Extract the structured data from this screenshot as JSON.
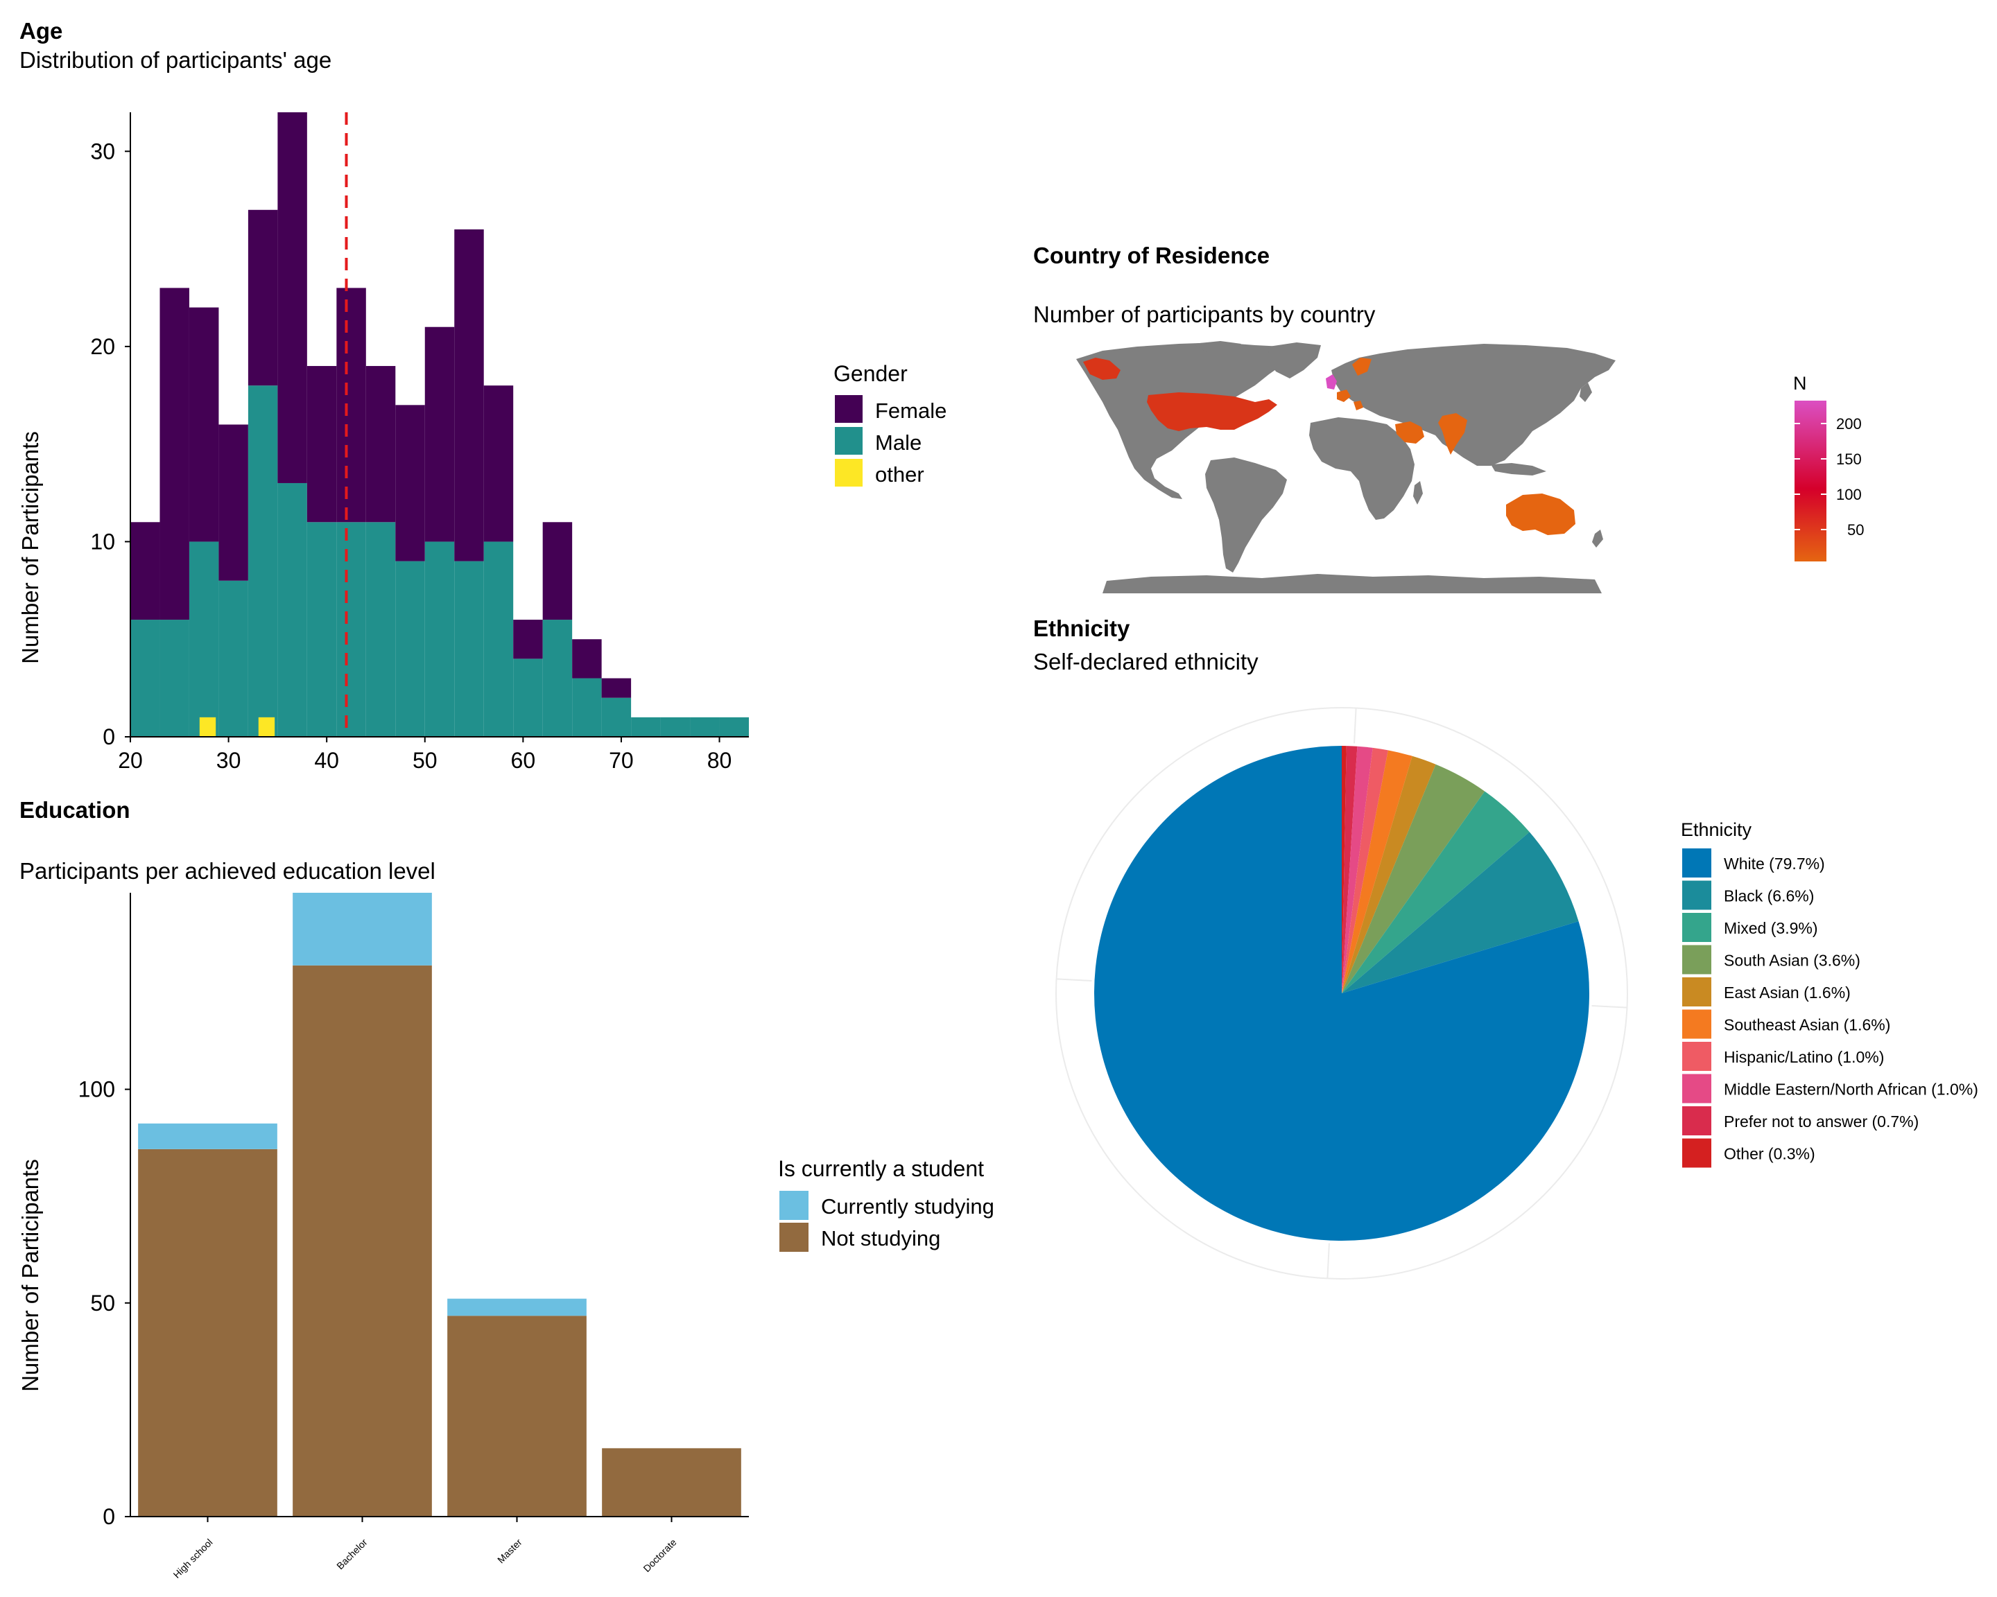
{
  "age": {
    "title": "Age",
    "subtitle": "Distribution of participants' age",
    "ylabel": "Number of Participants",
    "yticks": [
      "0",
      "10",
      "20",
      "30"
    ],
    "xticks": [
      "20",
      "30",
      "40",
      "50",
      "60",
      "70",
      "80"
    ],
    "mean_line_x": 42,
    "chart_data": {
      "type": "bar",
      "stacked": true,
      "title": "Age",
      "subtitle": "Distribution of participants' age",
      "xlabel": "",
      "ylabel": "Number of Participants",
      "xlim": [
        20,
        83
      ],
      "ylim": [
        0,
        32
      ],
      "bin_starts": [
        20,
        23,
        26,
        29,
        32,
        35,
        38,
        41,
        44,
        47,
        50,
        53,
        56,
        59,
        62,
        65,
        68,
        71,
        74,
        77,
        80
      ],
      "bin_width": 3,
      "series": [
        {
          "name": "Female",
          "values": [
            5,
            17,
            12,
            8,
            9,
            19,
            8,
            12,
            8,
            8,
            11,
            17,
            8,
            2,
            5,
            2,
            1,
            0,
            0,
            0,
            0
          ]
        },
        {
          "name": "Male",
          "values": [
            6,
            6,
            10,
            8,
            18,
            13,
            11,
            11,
            11,
            9,
            10,
            9,
            10,
            4,
            6,
            3,
            2,
            1,
            1,
            1,
            1
          ]
        },
        {
          "name": "other",
          "values": [
            0,
            0,
            1,
            0,
            1,
            0,
            0,
            0,
            0,
            0,
            0,
            0,
            0,
            0,
            0,
            0,
            0,
            0,
            0,
            0,
            0
          ]
        }
      ]
    },
    "legend": {
      "title": "Gender",
      "items": [
        {
          "label": "Female",
          "color": "#440154"
        },
        {
          "label": "Male",
          "color": "#21908C"
        },
        {
          "label": "other",
          "color": "#FDE725"
        }
      ]
    },
    "mean_line_color": "#E41A1C"
  },
  "country": {
    "title": "Country of Residence",
    "subtitle": "Number of participants by country",
    "legend_title": "N",
    "legend_ticks": [
      "200",
      "150",
      "100",
      "50"
    ],
    "chart_data": {
      "type": "map",
      "title": "Country of Residence",
      "subtitle": "Number of participants by country",
      "scale": {
        "name": "N",
        "min": 1,
        "max": 235,
        "ticks": [
          50,
          100,
          150,
          200
        ]
      },
      "highlighted_regions": [
        {
          "region": "United States",
          "approx_n": 85
        },
        {
          "region": "Canada",
          "approx_n": 70
        },
        {
          "region": "United Kingdom",
          "approx_n": 230
        },
        {
          "region": "Europe (various)",
          "approx_n": 25
        },
        {
          "region": "India",
          "approx_n": 20
        },
        {
          "region": "Saudi Arabia",
          "approx_n": 15
        },
        {
          "region": "Australia",
          "approx_n": 10
        }
      ]
    },
    "colors": {
      "land": "#7F7F7F",
      "low": "#E56511",
      "mid": "#D5002A",
      "high": "#DB4FC2"
    }
  },
  "education": {
    "title": "Education",
    "subtitle": "Participants per achieved education level",
    "ylabel": "Number of Participants",
    "yticks": [
      "0",
      "50",
      "100"
    ],
    "chart_data": {
      "type": "bar",
      "stacked": true,
      "title": "Education",
      "subtitle": "Participants per achieved education level",
      "xlabel": "",
      "ylabel": "Number of Participants",
      "ylim": [
        0,
        146
      ],
      "categories": [
        "High school",
        "Bachelor",
        "Master",
        "Doctorate"
      ],
      "series": [
        {
          "name": "Not studying",
          "values": [
            86,
            129,
            47,
            16
          ]
        },
        {
          "name": "Currently studying",
          "values": [
            6,
            17,
            4,
            0
          ]
        }
      ]
    },
    "legend": {
      "title": "Is currently a student",
      "items": [
        {
          "label": "Currently studying",
          "color": "#6BBFE1"
        },
        {
          "label": "Not studying",
          "color": "#926A3F"
        }
      ]
    }
  },
  "ethnicity": {
    "title": "Ethnicity",
    "subtitle": "Self-declared ethnicity",
    "chart_data": {
      "type": "pie",
      "title": "Ethnicity",
      "subtitle": "Self-declared ethnicity",
      "categories": [
        "White (79.7%)",
        "Black (6.6%)",
        "Mixed (3.9%)",
        "South Asian (3.6%)",
        "East Asian (1.6%)",
        "Southeast Asian (1.6%)",
        "Hispanic/Latino (1.0%)",
        "Middle Eastern/North African (1.0%)",
        "Prefer not to answer (0.7%)",
        "Other (0.3%)"
      ],
      "values": [
        79.7,
        6.6,
        3.9,
        3.6,
        1.6,
        1.6,
        1.0,
        1.0,
        0.7,
        0.3
      ]
    },
    "legend": {
      "title": "Ethnicity",
      "items": [
        {
          "label": "White (79.7%)",
          "color": "#0077B6"
        },
        {
          "label": "Black (6.6%)",
          "color": "#1B8C9B"
        },
        {
          "label": "Mixed (3.9%)",
          "color": "#34A58C"
        },
        {
          "label": "South Asian (3.6%)",
          "color": "#7A9F5A"
        },
        {
          "label": "East Asian (1.6%)",
          "color": "#C98A22"
        },
        {
          "label": "Southeast Asian (1.6%)",
          "color": "#F47A20"
        },
        {
          "label": "Hispanic/Latino (1.0%)",
          "color": "#EF5B64"
        },
        {
          "label": "Middle Eastern/North African (1.0%)",
          "color": "#E54A86"
        },
        {
          "label": "Prefer not to answer (0.7%)",
          "color": "#D92C4D"
        },
        {
          "label": "Other (0.3%)",
          "color": "#D42020"
        }
      ]
    }
  }
}
